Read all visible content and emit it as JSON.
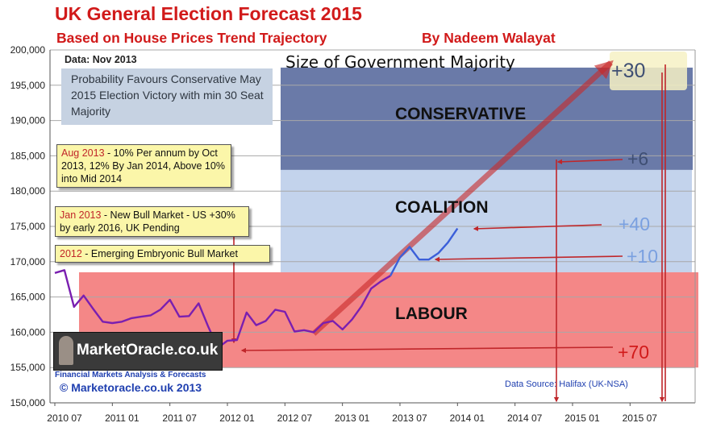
{
  "header": {
    "title": "UK General Election Forecast 2015",
    "subtitle": "Based on House Prices Trend Trajectory",
    "author": "By Nadeem Walayat"
  },
  "chart_data": {
    "type": "line",
    "title": "UK General Election Forecast 2015",
    "subtitle": "Based on House Prices Trend Trajectory",
    "ylim": [
      150000,
      200000
    ],
    "y_ticks": [
      "150,000",
      "155,000",
      "160,000",
      "165,000",
      "170,000",
      "175,000",
      "180,000",
      "185,000",
      "190,000",
      "195,000",
      "200,000"
    ],
    "x_ticks": [
      "2010 07",
      "2011 01",
      "2011 07",
      "2012 01",
      "2012 07",
      "2013 01",
      "2013 07",
      "2014 01",
      "2014 07",
      "2015 01",
      "2015 07"
    ],
    "grid": true,
    "series": [
      {
        "name": "Halifax (UK-NSA)",
        "color": "#7a1fb0",
        "x": [
          "2010-07",
          "2010-08",
          "2010-09",
          "2010-10",
          "2010-11",
          "2010-12",
          "2011-01",
          "2011-02",
          "2011-03",
          "2011-04",
          "2011-05",
          "2011-06",
          "2011-07",
          "2011-08",
          "2011-09",
          "2011-10",
          "2011-11",
          "2011-12",
          "2012-01",
          "2012-02",
          "2012-03",
          "2012-04",
          "2012-05",
          "2012-06",
          "2012-07",
          "2012-08",
          "2012-09",
          "2012-10",
          "2012-11",
          "2012-12",
          "2013-01",
          "2013-02",
          "2013-03",
          "2013-04",
          "2013-05",
          "2013-06"
        ],
        "values": [
          168400,
          168800,
          163600,
          165200,
          163300,
          161500,
          161300,
          161500,
          162000,
          162200,
          162400,
          163200,
          164600,
          162200,
          162300,
          164100,
          160800,
          157800,
          158800,
          158900,
          162800,
          161000,
          161600,
          163200,
          162900,
          160100,
          160300,
          160000,
          161300,
          161600,
          160400,
          161800,
          163700,
          166200,
          167200,
          168000
        ]
      },
      {
        "name": "Forecast",
        "color": "#3b5fd9",
        "x": [
          "2013-06",
          "2013-07",
          "2013-08",
          "2013-09",
          "2013-10",
          "2013-11",
          "2013-12",
          "2014-01"
        ],
        "values": [
          168000,
          170600,
          172100,
          170300,
          170300,
          171200,
          172700,
          174700
        ]
      },
      {
        "name": "Trend Trajectory",
        "color": "#c0262a",
        "x": [
          "2012-10",
          "2015-05"
        ],
        "values": [
          159800,
          198200
        ]
      }
    ],
    "bands": [
      {
        "label": "CONSERVATIVE",
        "from": 183000,
        "to": 197500,
        "color": "#6a7aa8"
      },
      {
        "label": "COALITION",
        "from": 168500,
        "to": 183000,
        "color": "#c3d3ec"
      },
      {
        "label": "LABOUR",
        "from": 155000,
        "to": 168500,
        "color": "#f37d7d"
      }
    ],
    "majority_heading": "Size of Government Majority",
    "majority_labels": [
      {
        "label": "+30",
        "y": 196500,
        "color": "#3f4f73"
      },
      {
        "label": "+6",
        "y": 184500,
        "color": "#3f4f73"
      },
      {
        "label": "+40",
        "y": 175500,
        "color": "#7aa0e0"
      },
      {
        "label": "+10",
        "y": 170800,
        "color": "#7aa0e0"
      },
      {
        "label": "+70",
        "y": 156400,
        "color": "#d11a1a"
      }
    ]
  },
  "notes": {
    "data_date": "Data: Nov 2013",
    "probability": "Probability Favours Conservative May 2015 Election Victory with min 30 Seat Majority",
    "aug2013_date": "Aug 2013",
    "aug2013_text": " - 10% Per annum by Oct 2013, 12% By Jan 2014, Above 10% into Mid 2014",
    "jan2013_date": "Jan 2013",
    "jan2013_text": " - New Bull Market - US +30% by early 2016, UK Pending",
    "y2012_date": "2012",
    "y2012_text": " - Emerging Embryonic Bull Market"
  },
  "footer": {
    "logo": "MarketOracle.co.uk",
    "tagline": "Financial Markets Analysis & Forecasts",
    "copyright": "© Marketoracle.co.uk 2013",
    "source": "Data Source: Halifax (UK-NSA)"
  }
}
